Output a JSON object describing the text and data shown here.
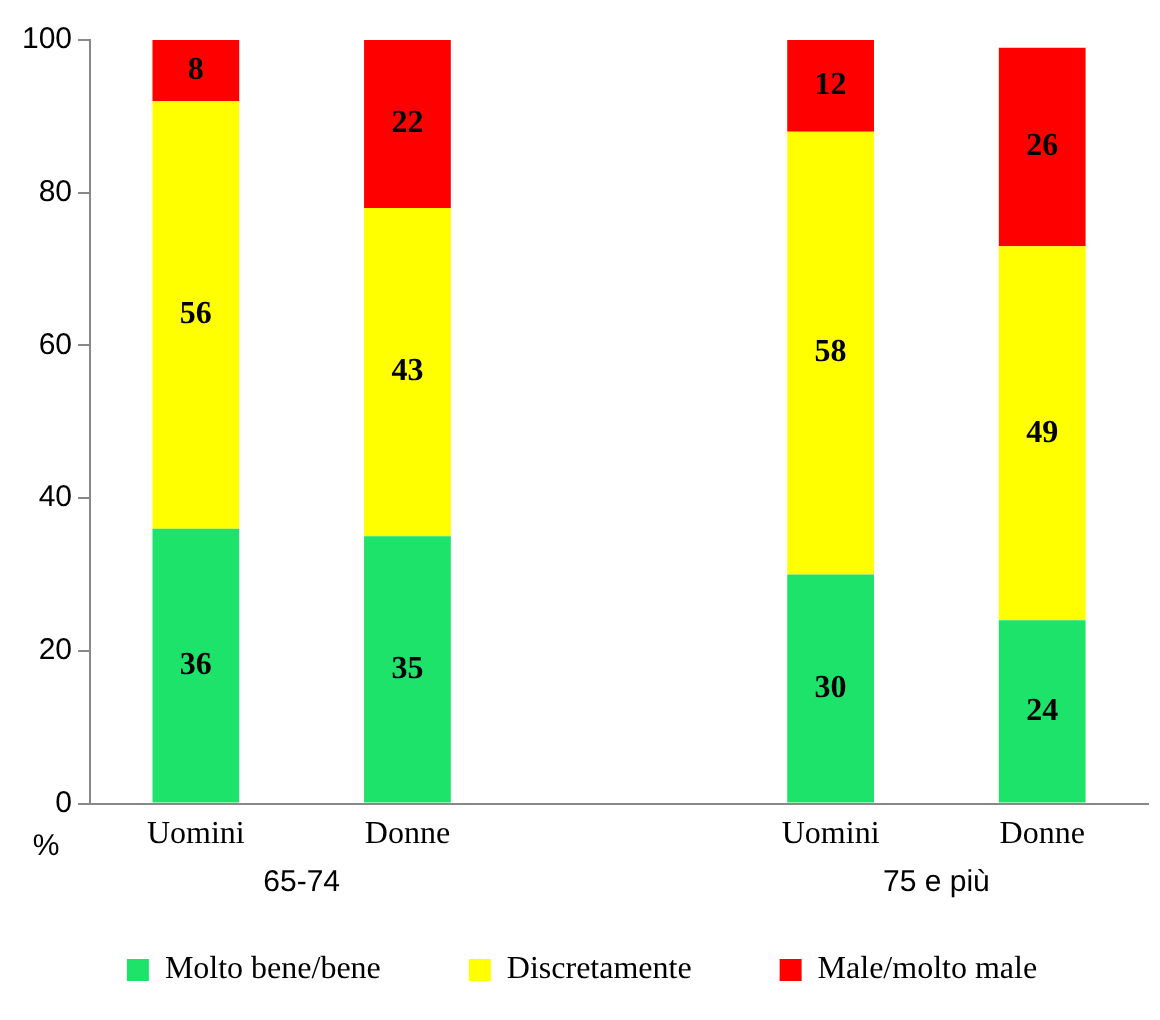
{
  "chart_data": {
    "type": "bar",
    "stacked": true,
    "categories": [
      "Uomini",
      "Donne",
      null,
      "Uomini",
      "Donne"
    ],
    "series": [
      {
        "name": "Molto bene/bene",
        "color": "#1ee36a",
        "values": [
          36,
          35,
          null,
          30,
          24
        ]
      },
      {
        "name": "Discretamente",
        "color": "#ffff00",
        "values": [
          56,
          43,
          null,
          58,
          49
        ]
      },
      {
        "name": "Male/molto male",
        "color": "#ff0000",
        "values": [
          8,
          22,
          null,
          12,
          26
        ]
      }
    ],
    "ylim": [
      0,
      100
    ],
    "yticks": [
      0,
      20,
      40,
      60,
      80,
      100
    ],
    "ylabel": "%",
    "grid": false,
    "legend": "bottom",
    "data_labels": true,
    "annotations": [
      "65-74",
      "75 e più"
    ]
  }
}
